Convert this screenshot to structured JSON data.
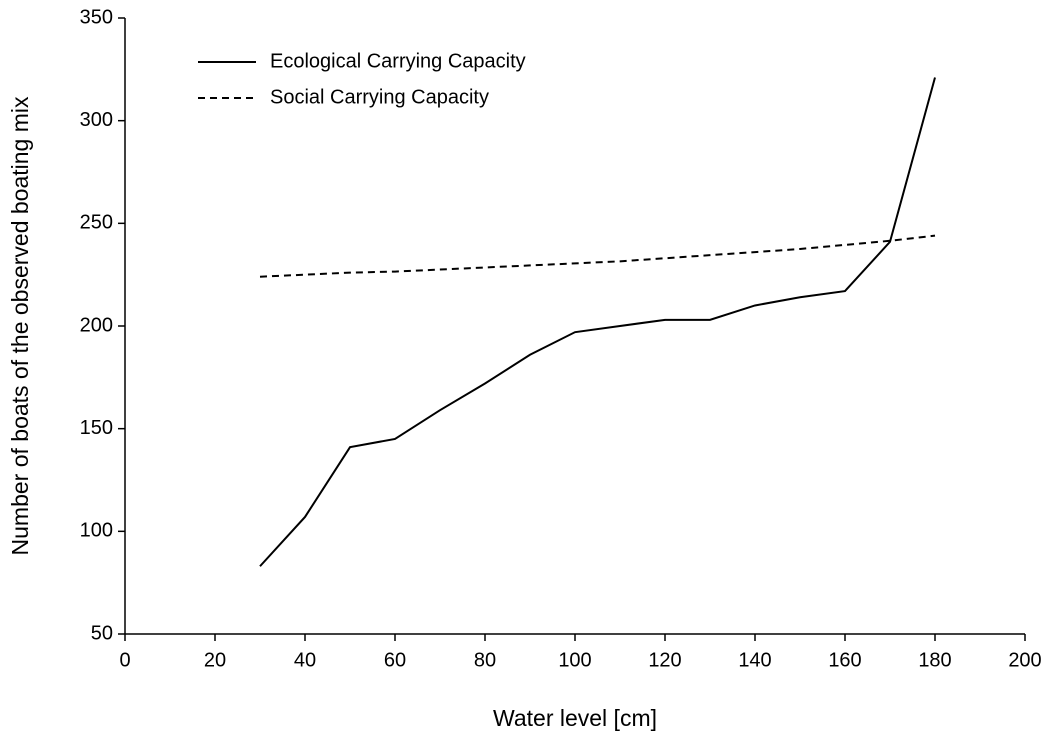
{
  "chart_data": {
    "type": "line",
    "x_label": "Water level [cm]",
    "y_label": "Number of boats of the observed boating mix",
    "x": [
      30,
      40,
      50,
      60,
      70,
      80,
      90,
      100,
      110,
      120,
      130,
      140,
      150,
      160,
      170,
      180
    ],
    "series": [
      {
        "name": "Ecological Carrying Capacity",
        "color": "#000000",
        "dash": "solid",
        "values": [
          83,
          107,
          141,
          145,
          159,
          172,
          186,
          197,
          200,
          203,
          203,
          210,
          214,
          217,
          241,
          321
        ]
      },
      {
        "name": "Social Carrying Capacity",
        "color": "#000000",
        "dash": "dashed",
        "values": [
          224,
          225,
          226,
          226.5,
          227.5,
          228.5,
          229.5,
          230.5,
          231.5,
          233,
          234.5,
          236,
          237.5,
          239.5,
          241.5,
          244
        ]
      }
    ],
    "xlim": [
      0,
      200
    ],
    "xticks": [
      0,
      20,
      40,
      60,
      80,
      100,
      120,
      140,
      160,
      180,
      200
    ],
    "ylim": [
      50,
      350
    ],
    "yticks": [
      50,
      100,
      150,
      200,
      250,
      300,
      350
    ],
    "legend": "upper left",
    "grid": false
  }
}
